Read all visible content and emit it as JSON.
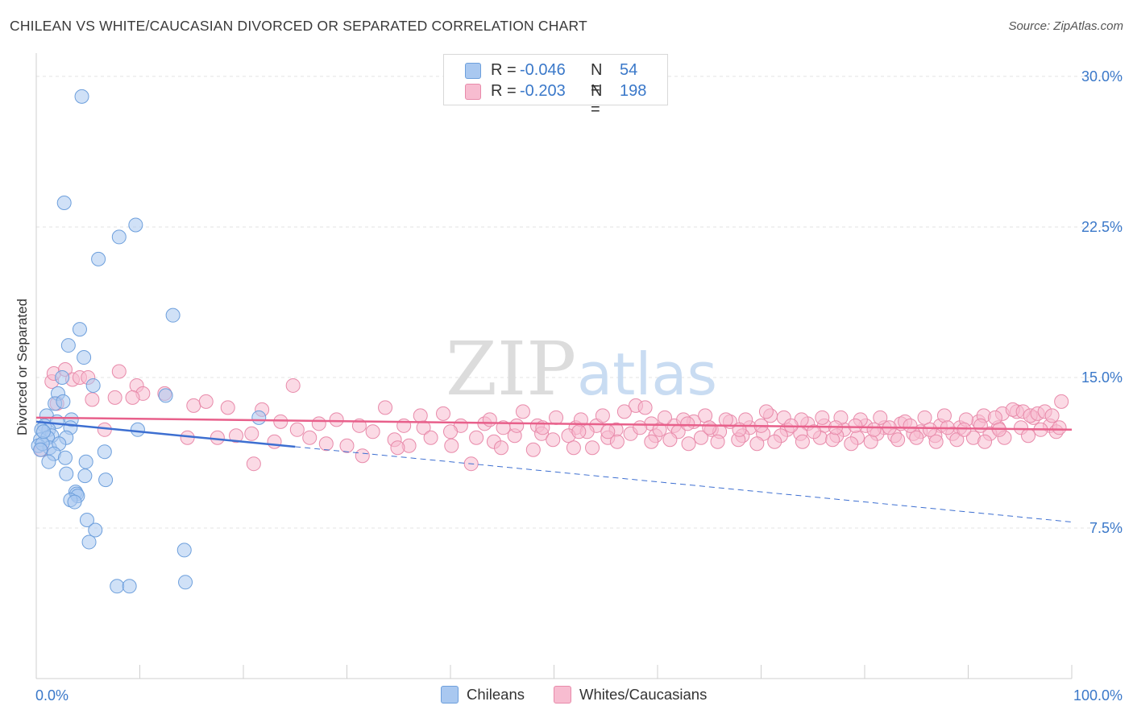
{
  "header": {
    "title": "CHILEAN VS WHITE/CAUCASIAN DIVORCED OR SEPARATED CORRELATION CHART",
    "source": "Source: ZipAtlas.com"
  },
  "legend_top": {
    "rows": [
      {
        "r_label": "R =",
        "r_value": "-0.046",
        "n_label": "N =",
        "n_value": "54"
      },
      {
        "r_label": "R =",
        "r_value": "-0.203",
        "n_label": "N =",
        "n_value": "198"
      }
    ]
  },
  "watermark": {
    "part1": "ZIP",
    "part2": "atlas"
  },
  "colors": {
    "blue_fill": "#a9c8f0",
    "blue_stroke": "#6d9fdc",
    "blue_line": "#3d6fd1",
    "pink_fill": "#f7bcd0",
    "pink_stroke": "#e88aaa",
    "pink_line": "#e8608b",
    "axis_label": "#3a78c9",
    "grid": "#e3e3e3"
  },
  "chart_data": {
    "type": "scatter",
    "title": "CHILEAN VS WHITE/CAUCASIAN DIVORCED OR SEPARATED CORRELATION CHART",
    "xlabel": "",
    "ylabel": "Divorced or Separated",
    "xlim": [
      0,
      100
    ],
    "ylim": [
      0,
      31
    ],
    "x_tick_labels": [
      "0.0%",
      "100.0%"
    ],
    "y_ticks": [
      7.5,
      15.0,
      22.5,
      30.0
    ],
    "y_tick_labels": [
      "7.5%",
      "15.0%",
      "22.5%",
      "30.0%"
    ],
    "grid": true,
    "legend_position": "bottom",
    "series": [
      {
        "name": "Chileans",
        "color": "#a9c8f0",
        "trend": {
          "x0": 0,
          "y0": 12.8,
          "x1": 100,
          "y1": 7.8,
          "solid_until": 25
        },
        "points": [
          [
            4.4,
            29.0
          ],
          [
            2.7,
            23.7
          ],
          [
            9.6,
            22.6
          ],
          [
            8.0,
            22.0
          ],
          [
            6.0,
            20.9
          ],
          [
            13.2,
            18.1
          ],
          [
            4.2,
            17.4
          ],
          [
            3.1,
            16.6
          ],
          [
            4.6,
            16.0
          ],
          [
            2.5,
            15.0
          ],
          [
            5.5,
            14.6
          ],
          [
            2.1,
            14.2
          ],
          [
            12.5,
            14.1
          ],
          [
            1.8,
            13.7
          ],
          [
            2.6,
            13.8
          ],
          [
            1.0,
            13.1
          ],
          [
            3.4,
            12.9
          ],
          [
            0.8,
            12.6
          ],
          [
            2.0,
            12.8
          ],
          [
            1.2,
            12.4
          ],
          [
            3.3,
            12.5
          ],
          [
            0.5,
            12.4
          ],
          [
            1.5,
            12.1
          ],
          [
            9.8,
            12.4
          ],
          [
            21.5,
            13.0
          ],
          [
            0.4,
            11.9
          ],
          [
            1.1,
            12.0
          ],
          [
            2.9,
            12.0
          ],
          [
            0.2,
            11.6
          ],
          [
            1.3,
            11.5
          ],
          [
            2.2,
            11.7
          ],
          [
            0.6,
            11.7
          ],
          [
            0.4,
            11.4
          ],
          [
            6.6,
            11.3
          ],
          [
            1.7,
            11.2
          ],
          [
            2.8,
            11.0
          ],
          [
            1.2,
            10.8
          ],
          [
            4.8,
            10.8
          ],
          [
            2.9,
            10.2
          ],
          [
            4.7,
            10.1
          ],
          [
            6.7,
            9.9
          ],
          [
            3.8,
            9.3
          ],
          [
            3.9,
            9.2
          ],
          [
            4.0,
            9.1
          ],
          [
            3.3,
            8.9
          ],
          [
            3.7,
            8.8
          ],
          [
            4.9,
            7.9
          ],
          [
            5.7,
            7.4
          ],
          [
            5.1,
            6.8
          ],
          [
            14.3,
            6.4
          ],
          [
            14.4,
            4.8
          ],
          [
            7.8,
            4.6
          ],
          [
            9.0,
            4.6
          ],
          [
            0.7,
            12.3
          ]
        ]
      },
      {
        "name": "Whites/Caucasians",
        "color": "#f7bcd0",
        "trend": {
          "x0": 0,
          "y0": 13.0,
          "x1": 100,
          "y1": 12.4,
          "solid_until": 100
        },
        "points": [
          [
            1.5,
            14.8
          ],
          [
            1.7,
            15.2
          ],
          [
            2.8,
            15.4
          ],
          [
            3.5,
            14.9
          ],
          [
            4.2,
            15.0
          ],
          [
            5.0,
            15.0
          ],
          [
            8.0,
            15.3
          ],
          [
            9.7,
            14.6
          ],
          [
            10.3,
            14.2
          ],
          [
            2.0,
            13.7
          ],
          [
            5.4,
            13.9
          ],
          [
            7.6,
            14.0
          ],
          [
            9.3,
            14.0
          ],
          [
            12.4,
            14.2
          ],
          [
            15.2,
            13.6
          ],
          [
            16.4,
            13.8
          ],
          [
            18.5,
            13.5
          ],
          [
            21.8,
            13.4
          ],
          [
            23.6,
            12.8
          ],
          [
            25.2,
            12.4
          ],
          [
            27.3,
            12.7
          ],
          [
            29.0,
            12.9
          ],
          [
            31.2,
            12.6
          ],
          [
            33.7,
            13.5
          ],
          [
            35.5,
            12.6
          ],
          [
            37.4,
            12.5
          ],
          [
            39.3,
            13.2
          ],
          [
            41.0,
            12.6
          ],
          [
            43.3,
            12.7
          ],
          [
            45.1,
            12.5
          ],
          [
            47.0,
            13.3
          ],
          [
            48.4,
            12.6
          ],
          [
            50.2,
            13.0
          ],
          [
            52.1,
            12.5
          ],
          [
            54.1,
            12.6
          ],
          [
            56.0,
            12.4
          ],
          [
            57.9,
            13.6
          ],
          [
            59.4,
            12.7
          ],
          [
            61.6,
            12.6
          ],
          [
            63.5,
            12.8
          ],
          [
            65.2,
            12.4
          ],
          [
            67.0,
            12.8
          ],
          [
            68.9,
            12.5
          ],
          [
            70.9,
            13.1
          ],
          [
            72.5,
            12.4
          ],
          [
            74.5,
            12.7
          ],
          [
            76.1,
            12.6
          ],
          [
            78.0,
            12.4
          ],
          [
            80.1,
            12.6
          ],
          [
            81.9,
            12.5
          ],
          [
            83.5,
            12.7
          ],
          [
            85.4,
            12.3
          ],
          [
            87.3,
            12.6
          ],
          [
            89.2,
            12.5
          ],
          [
            91.0,
            12.8
          ],
          [
            92.9,
            12.5
          ],
          [
            94.7,
            13.3
          ],
          [
            96.3,
            13.0
          ],
          [
            97.9,
            12.6
          ],
          [
            99.0,
            13.8
          ],
          [
            0.5,
            11.4
          ],
          [
            6.6,
            12.4
          ],
          [
            14.6,
            12.0
          ],
          [
            17.5,
            12.0
          ],
          [
            19.3,
            12.1
          ],
          [
            20.8,
            12.2
          ],
          [
            23.0,
            11.8
          ],
          [
            26.4,
            12.0
          ],
          [
            28.0,
            11.7
          ],
          [
            30.0,
            11.6
          ],
          [
            32.5,
            12.3
          ],
          [
            34.6,
            11.9
          ],
          [
            36.0,
            11.6
          ],
          [
            38.1,
            12.0
          ],
          [
            40.0,
            12.3
          ],
          [
            42.5,
            12.0
          ],
          [
            44.2,
            11.8
          ],
          [
            46.2,
            12.1
          ],
          [
            48.8,
            12.2
          ],
          [
            51.4,
            12.1
          ],
          [
            53.2,
            12.3
          ],
          [
            55.2,
            12.0
          ],
          [
            57.4,
            12.2
          ],
          [
            59.8,
            12.1
          ],
          [
            62.0,
            12.3
          ],
          [
            64.2,
            12.0
          ],
          [
            66.0,
            12.3
          ],
          [
            68.2,
            12.1
          ],
          [
            70.2,
            12.2
          ],
          [
            71.9,
            12.1
          ],
          [
            73.8,
            12.2
          ],
          [
            75.7,
            12.0
          ],
          [
            77.3,
            12.1
          ],
          [
            79.3,
            12.0
          ],
          [
            81.2,
            12.2
          ],
          [
            82.9,
            12.1
          ],
          [
            84.7,
            12.2
          ],
          [
            86.8,
            12.1
          ],
          [
            88.5,
            12.2
          ],
          [
            90.5,
            12.0
          ],
          [
            92.1,
            12.2
          ],
          [
            95.1,
            12.5
          ],
          [
            97.0,
            12.4
          ],
          [
            98.5,
            12.3
          ],
          [
            21.0,
            10.7
          ],
          [
            31.5,
            11.1
          ],
          [
            34.9,
            11.5
          ],
          [
            40.1,
            11.6
          ],
          [
            42.0,
            10.7
          ],
          [
            44.9,
            11.5
          ],
          [
            48.0,
            11.4
          ],
          [
            51.9,
            11.5
          ],
          [
            53.7,
            11.5
          ],
          [
            49.9,
            11.9
          ],
          [
            56.1,
            11.8
          ],
          [
            59.4,
            11.8
          ],
          [
            61.2,
            11.9
          ],
          [
            63.0,
            11.7
          ],
          [
            65.8,
            11.8
          ],
          [
            67.8,
            11.9
          ],
          [
            69.6,
            11.7
          ],
          [
            71.3,
            11.8
          ],
          [
            74.0,
            11.8
          ],
          [
            76.9,
            11.9
          ],
          [
            78.7,
            11.7
          ],
          [
            80.6,
            11.8
          ],
          [
            83.2,
            11.9
          ],
          [
            85.0,
            12.0
          ],
          [
            86.9,
            11.8
          ],
          [
            88.9,
            11.9
          ],
          [
            91.6,
            11.8
          ],
          [
            93.5,
            12.0
          ],
          [
            95.8,
            12.1
          ],
          [
            24.8,
            14.6
          ],
          [
            43.8,
            12.9
          ],
          [
            52.6,
            12.9
          ],
          [
            54.7,
            13.1
          ],
          [
            56.8,
            13.3
          ],
          [
            58.8,
            13.5
          ],
          [
            60.7,
            13.0
          ],
          [
            62.5,
            12.9
          ],
          [
            64.6,
            13.1
          ],
          [
            66.6,
            12.9
          ],
          [
            68.5,
            12.9
          ],
          [
            70.5,
            13.3
          ],
          [
            72.2,
            13.0
          ],
          [
            73.9,
            12.9
          ],
          [
            75.9,
            13.0
          ],
          [
            77.7,
            13.0
          ],
          [
            79.6,
            12.9
          ],
          [
            81.5,
            13.0
          ],
          [
            83.9,
            12.8
          ],
          [
            85.8,
            13.0
          ],
          [
            87.7,
            13.1
          ],
          [
            89.8,
            12.9
          ],
          [
            91.5,
            13.1
          ],
          [
            93.3,
            13.2
          ],
          [
            94.3,
            13.4
          ],
          [
            95.3,
            13.3
          ],
          [
            96.0,
            13.1
          ],
          [
            96.7,
            13.2
          ],
          [
            97.4,
            13.3
          ],
          [
            98.1,
            13.1
          ],
          [
            98.8,
            12.5
          ],
          [
            92.6,
            13.0
          ],
          [
            37.1,
            13.1
          ],
          [
            46.4,
            12.6
          ],
          [
            48.9,
            12.5
          ],
          [
            52.4,
            12.3
          ],
          [
            55.2,
            12.3
          ],
          [
            58.3,
            12.5
          ],
          [
            60.2,
            12.4
          ],
          [
            62.9,
            12.7
          ],
          [
            65.0,
            12.5
          ],
          [
            67.9,
            12.4
          ],
          [
            70.0,
            12.6
          ],
          [
            72.9,
            12.6
          ],
          [
            75.1,
            12.3
          ],
          [
            77.2,
            12.5
          ],
          [
            79.1,
            12.6
          ],
          [
            80.9,
            12.4
          ],
          [
            82.4,
            12.5
          ],
          [
            84.4,
            12.6
          ],
          [
            86.3,
            12.4
          ],
          [
            88.0,
            12.5
          ],
          [
            89.6,
            12.4
          ],
          [
            91.2,
            12.6
          ],
          [
            93.0,
            12.4
          ]
        ]
      }
    ]
  },
  "axes": {
    "y_axis_title": "Divorced or Separated",
    "x_left_label": "0.0%",
    "x_right_label": "100.0%"
  },
  "bottom_legend": {
    "items": [
      {
        "label": "Chileans"
      },
      {
        "label": "Whites/Caucasians"
      }
    ]
  }
}
